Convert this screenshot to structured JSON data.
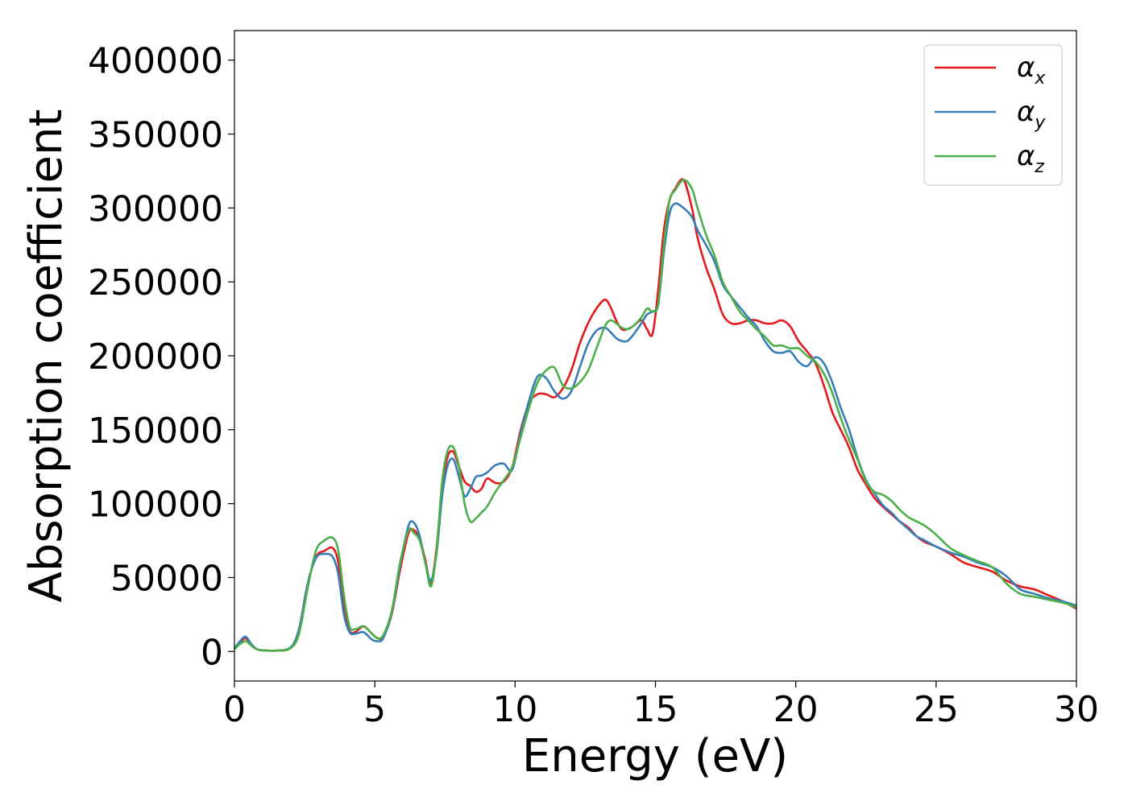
{
  "chart_data": {
    "type": "line",
    "xlabel": "Energy (eV)",
    "ylabel": "Absorption coefficient",
    "xlim": [
      0,
      30
    ],
    "ylim": [
      -20000,
      420000
    ],
    "xticks": [
      0,
      5,
      10,
      15,
      20,
      25,
      30
    ],
    "xtick_labels": [
      "0",
      "5",
      "10",
      "15",
      "20",
      "25",
      "30"
    ],
    "yticks": [
      0,
      50000,
      100000,
      150000,
      200000,
      250000,
      300000,
      350000,
      400000
    ],
    "ytick_labels": [
      "0",
      "50000",
      "100000",
      "150000",
      "200000",
      "250000",
      "300000",
      "350000",
      "400000"
    ],
    "grid": false,
    "legend_position": "top-right",
    "series": [
      {
        "name": "αx",
        "symbol": "α",
        "subscript": "x",
        "color": "#e41a1c",
        "x": [
          0,
          0.2,
          0.4,
          0.6,
          0.8,
          1,
          1.5,
          2,
          2.3,
          2.6,
          2.9,
          3.2,
          3.5,
          3.7,
          3.9,
          4.1,
          4.3,
          4.6,
          4.9,
          5.1,
          5.3,
          5.6,
          5.9,
          6.2,
          6.4,
          6.6,
          6.8,
          7,
          7.2,
          7.4,
          7.6,
          7.8,
          8,
          8.2,
          8.4,
          8.6,
          8.8,
          9,
          9.3,
          9.6,
          9.9,
          10.2,
          10.5,
          10.8,
          11.1,
          11.4,
          11.7,
          12,
          12.3,
          12.6,
          12.9,
          13.2,
          13.4,
          13.6,
          13.8,
          14,
          14.2,
          14.5,
          14.7,
          14.9,
          15.1,
          15.3,
          15.5,
          15.7,
          16,
          16.3,
          16.5,
          16.8,
          17.1,
          17.4,
          17.7,
          18,
          18.3,
          18.6,
          18.9,
          19.2,
          19.5,
          19.8,
          20.1,
          20.4,
          20.7,
          21,
          21.3,
          21.6,
          21.9,
          22.2,
          22.5,
          22.8,
          23.1,
          23.4,
          23.7,
          24,
          24.3,
          24.6,
          25,
          25.5,
          26,
          26.5,
          27,
          27.5,
          28,
          28.5,
          29,
          29.5,
          30
        ],
        "y": [
          2000,
          6000,
          9000,
          4000,
          1500,
          800,
          600,
          2500,
          15000,
          45000,
          64000,
          68000,
          70000,
          60000,
          30000,
          14000,
          13000,
          17000,
          12000,
          9000,
          10000,
          25000,
          55000,
          80000,
          82000,
          76000,
          62000,
          46000,
          70000,
          110000,
          132000,
          135000,
          125000,
          115000,
          112000,
          108000,
          110000,
          117000,
          114000,
          115000,
          125000,
          150000,
          168000,
          174000,
          174000,
          172000,
          178000,
          190000,
          208000,
          222000,
          232000,
          238000,
          233000,
          224000,
          218000,
          218000,
          220000,
          224000,
          218000,
          215000,
          245000,
          285000,
          305000,
          313000,
          319000,
          300000,
          280000,
          260000,
          245000,
          228000,
          222000,
          222000,
          224000,
          224000,
          222000,
          222000,
          224000,
          220000,
          210000,
          203000,
          195000,
          180000,
          162000,
          150000,
          138000,
          123000,
          113000,
          104000,
          98000,
          93000,
          88000,
          84000,
          78000,
          74000,
          71000,
          66000,
          60000,
          57000,
          54000,
          48000,
          44000,
          42000,
          38000,
          34000,
          29000
        ]
      },
      {
        "name": "αy",
        "symbol": "α",
        "subscript": "y",
        "color": "#377eb8",
        "x": [
          0,
          0.2,
          0.4,
          0.6,
          0.8,
          1,
          1.5,
          2,
          2.3,
          2.6,
          2.9,
          3.2,
          3.5,
          3.7,
          3.9,
          4.1,
          4.3,
          4.6,
          4.9,
          5.1,
          5.3,
          5.6,
          5.9,
          6.2,
          6.4,
          6.6,
          6.8,
          7,
          7.2,
          7.4,
          7.6,
          7.8,
          8,
          8.2,
          8.4,
          8.6,
          8.8,
          9,
          9.3,
          9.6,
          9.9,
          10.2,
          10.5,
          10.8,
          11.1,
          11.4,
          11.7,
          12,
          12.3,
          12.6,
          12.9,
          13.2,
          13.4,
          13.6,
          13.8,
          14,
          14.2,
          14.5,
          14.7,
          14.9,
          15.1,
          15.3,
          15.5,
          15.7,
          16,
          16.3,
          16.5,
          16.8,
          17.1,
          17.4,
          17.7,
          18,
          18.3,
          18.6,
          18.9,
          19.2,
          19.5,
          19.8,
          20.1,
          20.4,
          20.7,
          21,
          21.3,
          21.6,
          21.9,
          22.2,
          22.5,
          22.8,
          23.1,
          23.4,
          23.7,
          24,
          24.3,
          24.6,
          25,
          25.5,
          26,
          26.5,
          27,
          27.5,
          28,
          28.5,
          29,
          29.5,
          30
        ],
        "y": [
          2000,
          7000,
          10000,
          5000,
          1500,
          800,
          600,
          2800,
          15000,
          45000,
          63000,
          66000,
          64000,
          52000,
          25000,
          13000,
          12000,
          13000,
          8000,
          7000,
          9000,
          26000,
          58000,
          85000,
          87000,
          78000,
          60000,
          48000,
          66000,
          105000,
          126000,
          130000,
          118000,
          105000,
          110000,
          118000,
          119000,
          121000,
          126000,
          127000,
          123000,
          148000,
          170000,
          186000,
          185000,
          176000,
          171000,
          176000,
          192000,
          208000,
          217000,
          219000,
          216000,
          212000,
          210000,
          210000,
          214000,
          222000,
          228000,
          230000,
          235000,
          270000,
          296000,
          303000,
          300000,
          294000,
          285000,
          275000,
          264000,
          248000,
          240000,
          233000,
          226000,
          220000,
          210000,
          203000,
          202000,
          203000,
          196000,
          193000,
          199000,
          195000,
          182000,
          165000,
          150000,
          131000,
          116000,
          107000,
          99000,
          94000,
          88000,
          83000,
          78000,
          75000,
          71000,
          67000,
          64000,
          60000,
          57000,
          51000,
          42000,
          39000,
          36000,
          34000,
          31000
        ]
      },
      {
        "name": "αz",
        "symbol": "α",
        "subscript": "z",
        "color": "#4daf4a",
        "x": [
          0,
          0.2,
          0.4,
          0.6,
          0.8,
          1,
          1.5,
          2,
          2.3,
          2.6,
          2.9,
          3.2,
          3.5,
          3.7,
          3.9,
          4.1,
          4.3,
          4.6,
          4.9,
          5.1,
          5.3,
          5.6,
          5.9,
          6.2,
          6.4,
          6.6,
          6.8,
          7,
          7.2,
          7.4,
          7.6,
          7.8,
          8,
          8.2,
          8.4,
          8.6,
          8.8,
          9,
          9.3,
          9.6,
          9.9,
          10.2,
          10.5,
          10.8,
          11.1,
          11.4,
          11.7,
          12,
          12.3,
          12.6,
          12.9,
          13.2,
          13.4,
          13.6,
          13.8,
          14,
          14.2,
          14.5,
          14.7,
          14.9,
          15.1,
          15.3,
          15.5,
          15.7,
          16,
          16.3,
          16.5,
          16.8,
          17.1,
          17.4,
          17.7,
          18,
          18.3,
          18.6,
          18.9,
          19.2,
          19.5,
          19.8,
          20.1,
          20.4,
          20.7,
          21,
          21.3,
          21.6,
          21.9,
          22.2,
          22.5,
          22.8,
          23.1,
          23.4,
          23.7,
          24,
          24.3,
          24.6,
          25,
          25.5,
          26,
          26.5,
          27,
          27.5,
          28,
          28.5,
          29,
          29.5,
          30
        ],
        "y": [
          1500,
          5000,
          7000,
          4000,
          1500,
          800,
          600,
          2200,
          12000,
          42000,
          68000,
          75000,
          77000,
          68000,
          38000,
          17000,
          15000,
          17000,
          12000,
          9000,
          11000,
          27000,
          60000,
          82000,
          80000,
          75000,
          60000,
          44000,
          68000,
          115000,
          136000,
          138000,
          125000,
          100000,
          88000,
          90000,
          94000,
          98000,
          108000,
          116000,
          125000,
          145000,
          165000,
          182000,
          190000,
          192000,
          180000,
          178000,
          182000,
          190000,
          205000,
          220000,
          224000,
          222000,
          219000,
          218000,
          220000,
          226000,
          232000,
          230000,
          235000,
          275000,
          305000,
          312000,
          319000,
          313000,
          300000,
          282000,
          268000,
          250000,
          240000,
          230000,
          224000,
          218000,
          213000,
          207000,
          207000,
          205000,
          205000,
          200000,
          196000,
          188000,
          175000,
          158000,
          143000,
          130000,
          115000,
          108000,
          106000,
          102000,
          96000,
          91000,
          88000,
          85000,
          79000,
          70000,
          65000,
          61000,
          57000,
          46000,
          39000,
          37000,
          35000,
          33000,
          30000
        ]
      }
    ]
  }
}
